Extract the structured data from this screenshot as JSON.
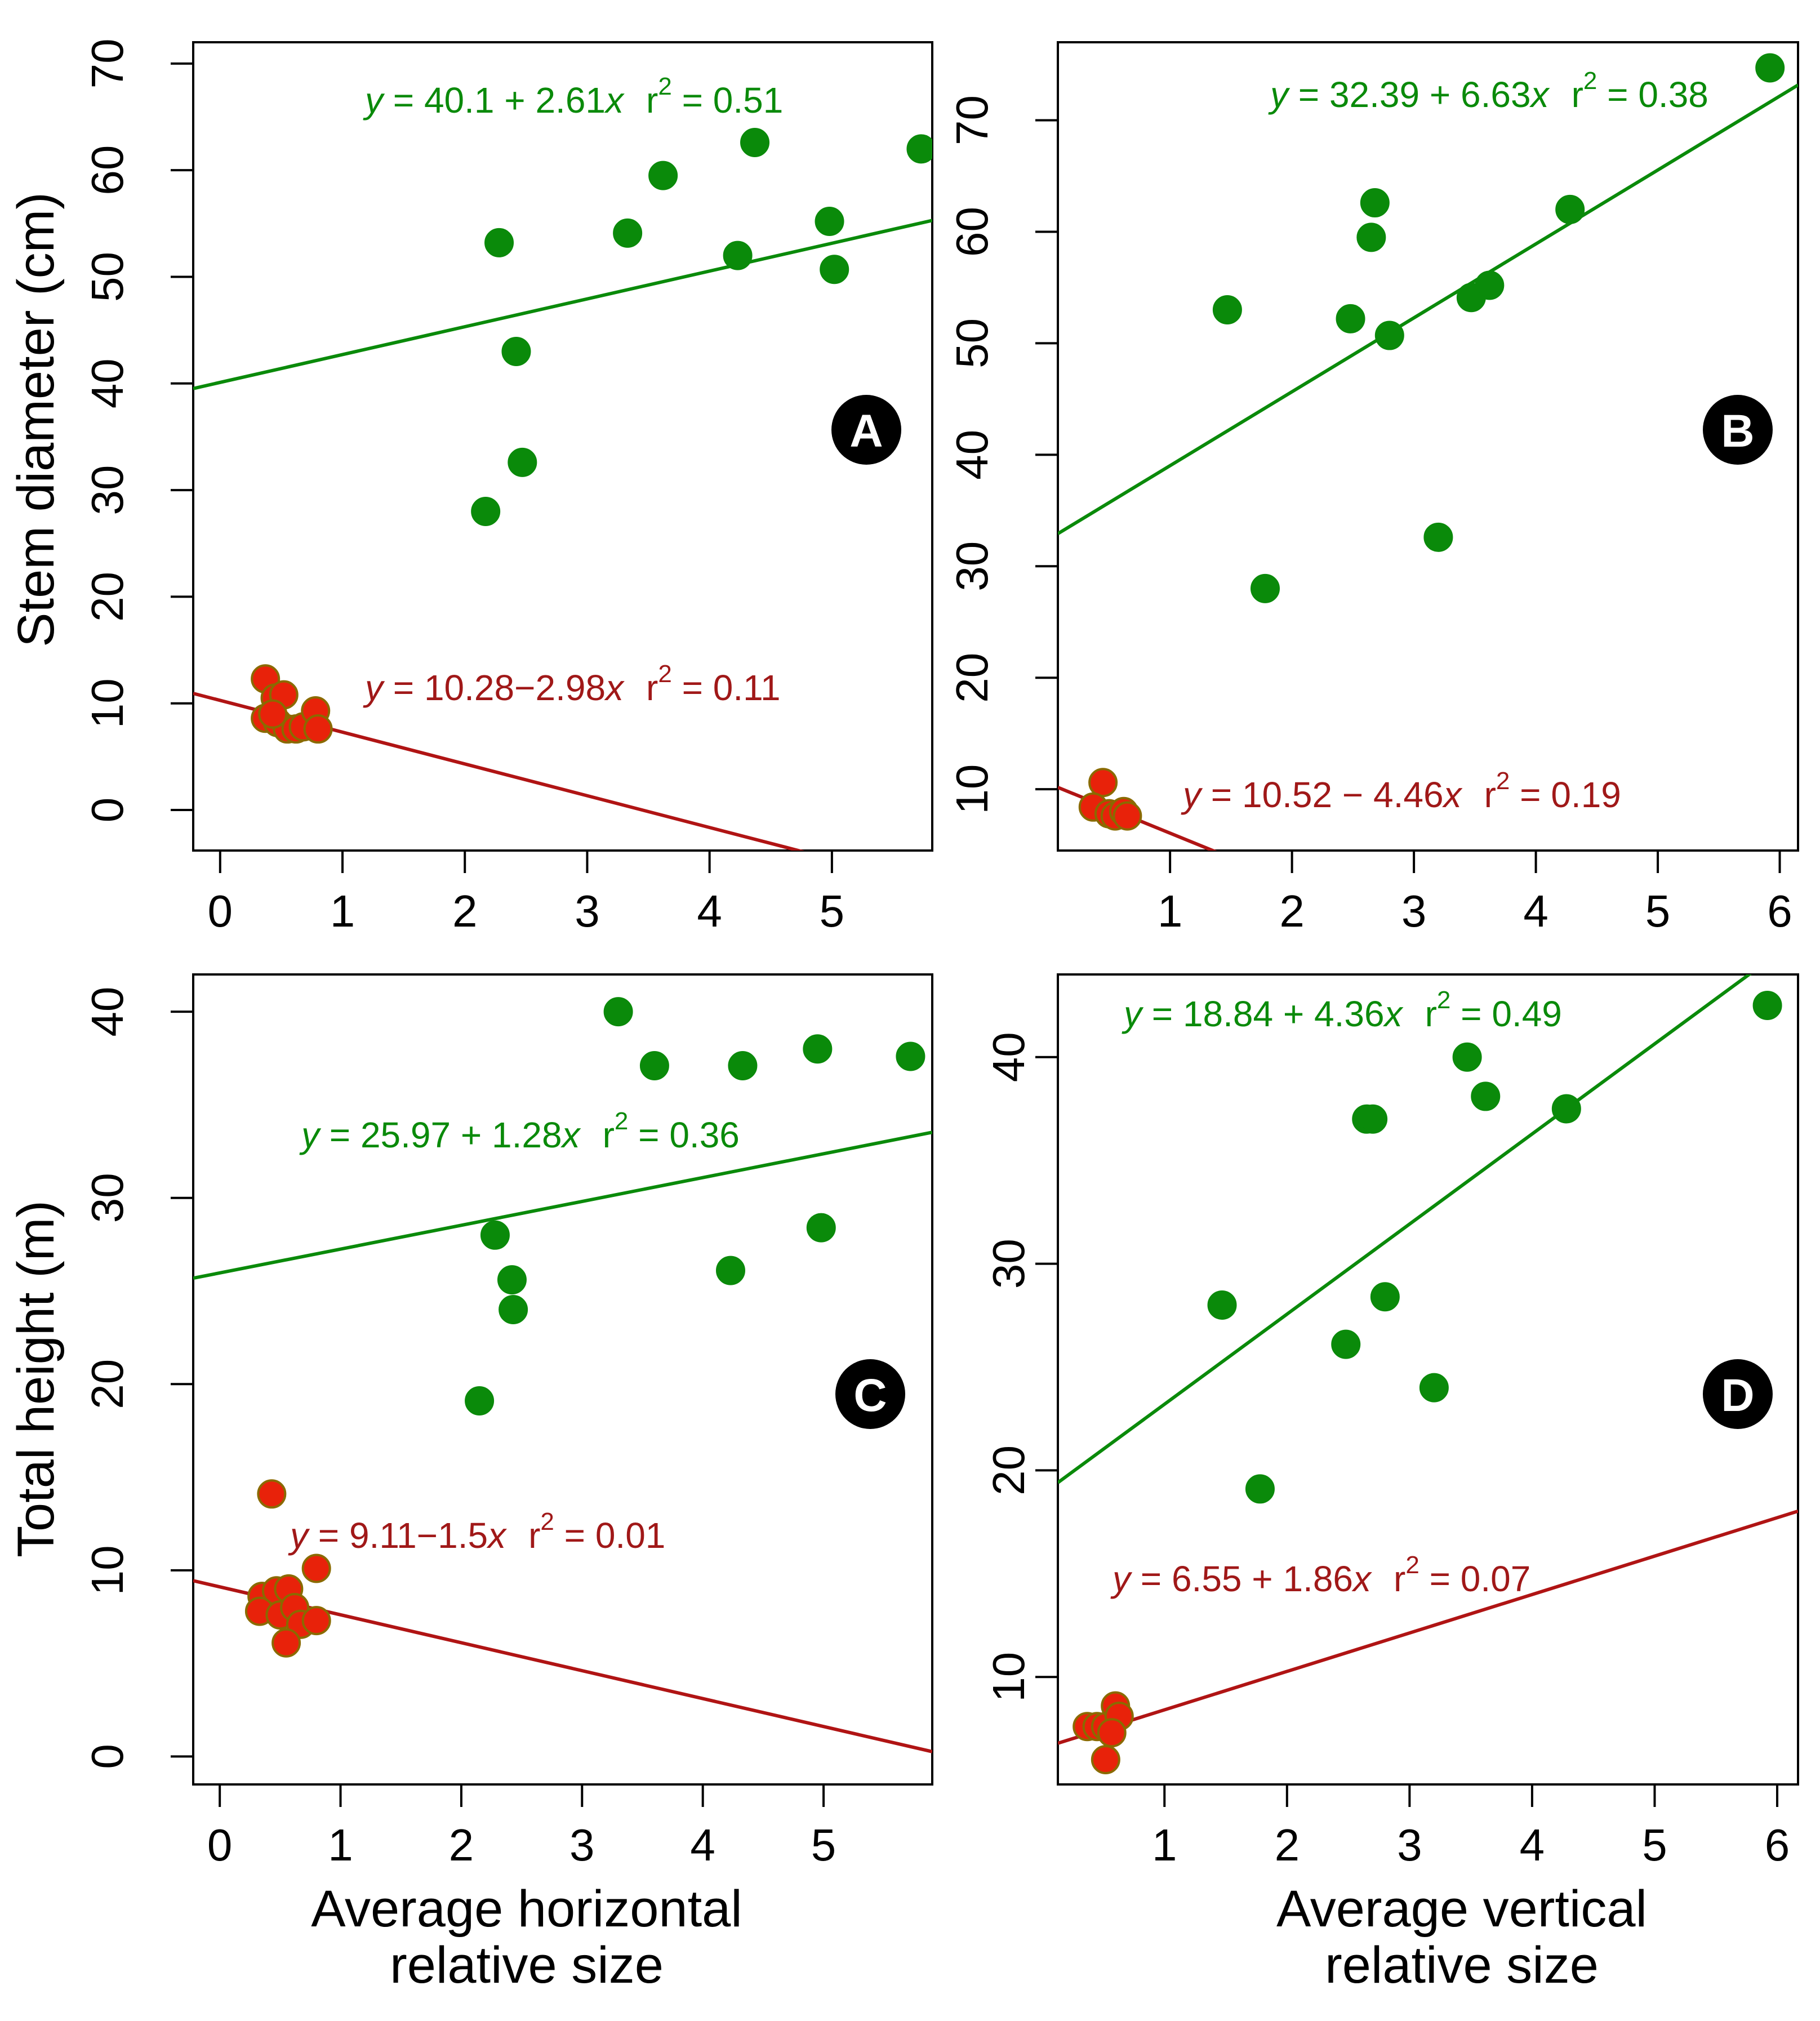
{
  "chart_data": [
    {
      "id": "A",
      "type": "scatter",
      "badge": "A",
      "ylabel": "Stem diameter (cm)",
      "xlabel": [],
      "xlim": [
        -0.22,
        5.82
      ],
      "ylim": [
        -3.8,
        72
      ],
      "xticks": [
        "0",
        "1",
        "2",
        "3",
        "4",
        "5"
      ],
      "xtick_values": [
        0,
        1,
        2,
        3,
        4,
        5
      ],
      "yticks": [
        "0",
        "10",
        "20",
        "30",
        "40",
        "50",
        "60",
        "70"
      ],
      "ytick_values": [
        0,
        10,
        20,
        30,
        40,
        50,
        60,
        70
      ],
      "series": [
        {
          "name": "green",
          "color": "#0a8a0a",
          "edge": "#0a8a0a",
          "points": [
            [
              2.28,
              53.2
            ],
            [
              2.42,
              43.0
            ],
            [
              2.47,
              32.6
            ],
            [
              2.17,
              28.0
            ],
            [
              3.33,
              54.1
            ],
            [
              3.62,
              59.5
            ],
            [
              4.37,
              62.6
            ],
            [
              4.23,
              52.0
            ],
            [
              4.98,
              55.2
            ],
            [
              5.02,
              50.7
            ],
            [
              5.73,
              62.0
            ]
          ],
          "line": [
            40.1,
            2.61
          ],
          "equation_lhs": "y",
          "equation_rhs": " = 40.1 + 2.61",
          "equation_var": "x",
          "r2_label": "r",
          "r2_value": " = 0.51"
        },
        {
          "name": "red",
          "color": "#e8220a",
          "edge": "#8a6a00",
          "points": [
            [
              0.37,
              12.3
            ],
            [
              0.45,
              10.5
            ],
            [
              0.52,
              10.8
            ],
            [
              0.37,
              8.6
            ],
            [
              0.47,
              8.2
            ],
            [
              0.55,
              7.6
            ],
            [
              0.62,
              7.6
            ],
            [
              0.68,
              7.8
            ],
            [
              0.78,
              9.3
            ],
            [
              0.8,
              7.6
            ],
            [
              0.43,
              9.0
            ]
          ],
          "line": [
            10.28,
            -2.98
          ],
          "equation_lhs": "y",
          "equation_rhs": " = 10.28−2.98",
          "equation_var": "x",
          "r2_label": "r",
          "r2_value": " = 0.11"
        }
      ]
    },
    {
      "id": "B",
      "type": "scatter",
      "badge": "B",
      "ylabel": "",
      "xlabel": [],
      "xlim": [
        0.08,
        6.15
      ],
      "ylim": [
        4.5,
        77
      ],
      "xticks": [
        "1",
        "2",
        "3",
        "4",
        "5",
        "6"
      ],
      "xtick_values": [
        1,
        2,
        3,
        4,
        5,
        6
      ],
      "yticks": [
        "10",
        "20",
        "30",
        "40",
        "50",
        "60",
        "70"
      ],
      "ytick_values": [
        10,
        20,
        30,
        40,
        50,
        60,
        70
      ],
      "series": [
        {
          "name": "green",
          "color": "#0a8a0a",
          "edge": "#0a8a0a",
          "points": [
            [
              1.47,
              53.0
            ],
            [
              1.78,
              28.0
            ],
            [
              2.48,
              52.2
            ],
            [
              2.65,
              59.5
            ],
            [
              2.68,
              62.6
            ],
            [
              2.8,
              50.7
            ],
            [
              3.2,
              32.6
            ],
            [
              3.47,
              54.1
            ],
            [
              3.62,
              55.2
            ],
            [
              4.28,
              62.0
            ],
            [
              5.92,
              74.7
            ]
          ],
          "line": [
            32.39,
            6.63
          ],
          "equation_lhs": "y",
          "equation_rhs": " = 32.39 + 6.63",
          "equation_var": "x",
          "r2_label": "r",
          "r2_value": " = 0.38"
        },
        {
          "name": "red",
          "color": "#e8220a",
          "edge": "#8a6a00",
          "points": [
            [
              0.45,
              10.6
            ],
            [
              0.37,
              8.4
            ],
            [
              0.5,
              7.8
            ],
            [
              0.55,
              7.6
            ],
            [
              0.62,
              8.0
            ],
            [
              0.65,
              7.6
            ]
          ],
          "line": [
            10.52,
            -4.46
          ],
          "equation_lhs": "y",
          "equation_rhs": " = 10.52 − 4.46",
          "equation_var": "x",
          "r2_label": "r",
          "r2_value": " = 0.19"
        }
      ]
    },
    {
      "id": "C",
      "type": "scatter",
      "badge": "C",
      "ylabel": "Total height (m)",
      "xlabel": [
        "Average horizontal",
        "relative size"
      ],
      "xlim": [
        -0.22,
        5.9
      ],
      "ylim": [
        -1.5,
        42
      ],
      "xticks": [
        "0",
        "1",
        "2",
        "3",
        "4",
        "5"
      ],
      "xtick_values": [
        0,
        1,
        2,
        3,
        4,
        5
      ],
      "yticks": [
        "0",
        "10",
        "20",
        "30",
        "40"
      ],
      "ytick_values": [
        0,
        10,
        20,
        30,
        40
      ],
      "series": [
        {
          "name": "green",
          "color": "#0a8a0a",
          "edge": "#0a8a0a",
          "points": [
            [
              2.15,
              19.1
            ],
            [
              2.28,
              28.0
            ],
            [
              2.42,
              25.6
            ],
            [
              2.43,
              24.0
            ],
            [
              3.3,
              40.0
            ],
            [
              3.6,
              37.1
            ],
            [
              4.23,
              26.1
            ],
            [
              4.33,
              37.1
            ],
            [
              4.95,
              38.0
            ],
            [
              4.98,
              28.4
            ],
            [
              5.72,
              37.6
            ]
          ],
          "line": [
            25.97,
            1.28
          ],
          "equation_lhs": "y",
          "equation_rhs": " = 25.97 + 1.28",
          "equation_var": "x",
          "r2_label": "r",
          "r2_value": " = 0.36"
        },
        {
          "name": "red",
          "color": "#e8220a",
          "edge": "#8a6a00",
          "points": [
            [
              0.43,
              14.1
            ],
            [
              0.8,
              10.1
            ],
            [
              0.35,
              8.6
            ],
            [
              0.47,
              8.9
            ],
            [
              0.57,
              9.0
            ],
            [
              0.33,
              7.8
            ],
            [
              0.5,
              7.6
            ],
            [
              0.62,
              8.0
            ],
            [
              0.67,
              7.1
            ],
            [
              0.8,
              7.3
            ],
            [
              0.55,
              6.1
            ]
          ],
          "line": [
            9.11,
            -1.5
          ],
          "equation_lhs": "y",
          "equation_rhs": " = 9.11−1.5",
          "equation_var": "x",
          "r2_label": "r",
          "r2_value": " = 0.01"
        }
      ]
    },
    {
      "id": "D",
      "type": "scatter",
      "badge": "D",
      "ylabel": "",
      "xlabel": [
        "Average vertical",
        "relative size"
      ],
      "xlim": [
        0.13,
        6.17
      ],
      "ylim": [
        4.8,
        44
      ],
      "xticks": [
        "1",
        "2",
        "3",
        "4",
        "5",
        "6"
      ],
      "xtick_values": [
        1,
        2,
        3,
        4,
        5,
        6
      ],
      "yticks": [
        "10",
        "20",
        "30",
        "40"
      ],
      "ytick_values": [
        10,
        20,
        30,
        40
      ],
      "series": [
        {
          "name": "green",
          "color": "#0a8a0a",
          "edge": "#0a8a0a",
          "points": [
            [
              1.47,
              28.0
            ],
            [
              1.78,
              19.1
            ],
            [
              2.48,
              26.1
            ],
            [
              2.65,
              37.0
            ],
            [
              2.7,
              37.0
            ],
            [
              2.8,
              28.4
            ],
            [
              3.2,
              24.0
            ],
            [
              3.47,
              40.0
            ],
            [
              3.62,
              38.1
            ],
            [
              4.28,
              37.5
            ],
            [
              5.92,
              42.5
            ]
          ],
          "line": [
            18.84,
            4.36
          ],
          "equation_lhs": "y",
          "equation_rhs": " = 18.84 + 4.36",
          "equation_var": "x",
          "r2_label": "r",
          "r2_value": " = 0.49"
        },
        {
          "name": "red",
          "color": "#e8220a",
          "edge": "#8a6a00",
          "points": [
            [
              0.37,
              7.6
            ],
            [
              0.45,
              7.6
            ],
            [
              0.52,
              7.6
            ],
            [
              0.6,
              8.6
            ],
            [
              0.63,
              8.1
            ],
            [
              0.57,
              7.3
            ],
            [
              0.52,
              6.0
            ]
          ],
          "line": [
            6.55,
            1.86
          ],
          "equation_lhs": "y",
          "equation_rhs": " = 6.55 + 1.86",
          "equation_var": "x",
          "r2_label": "r",
          "r2_value": " = 0.07"
        }
      ]
    }
  ]
}
